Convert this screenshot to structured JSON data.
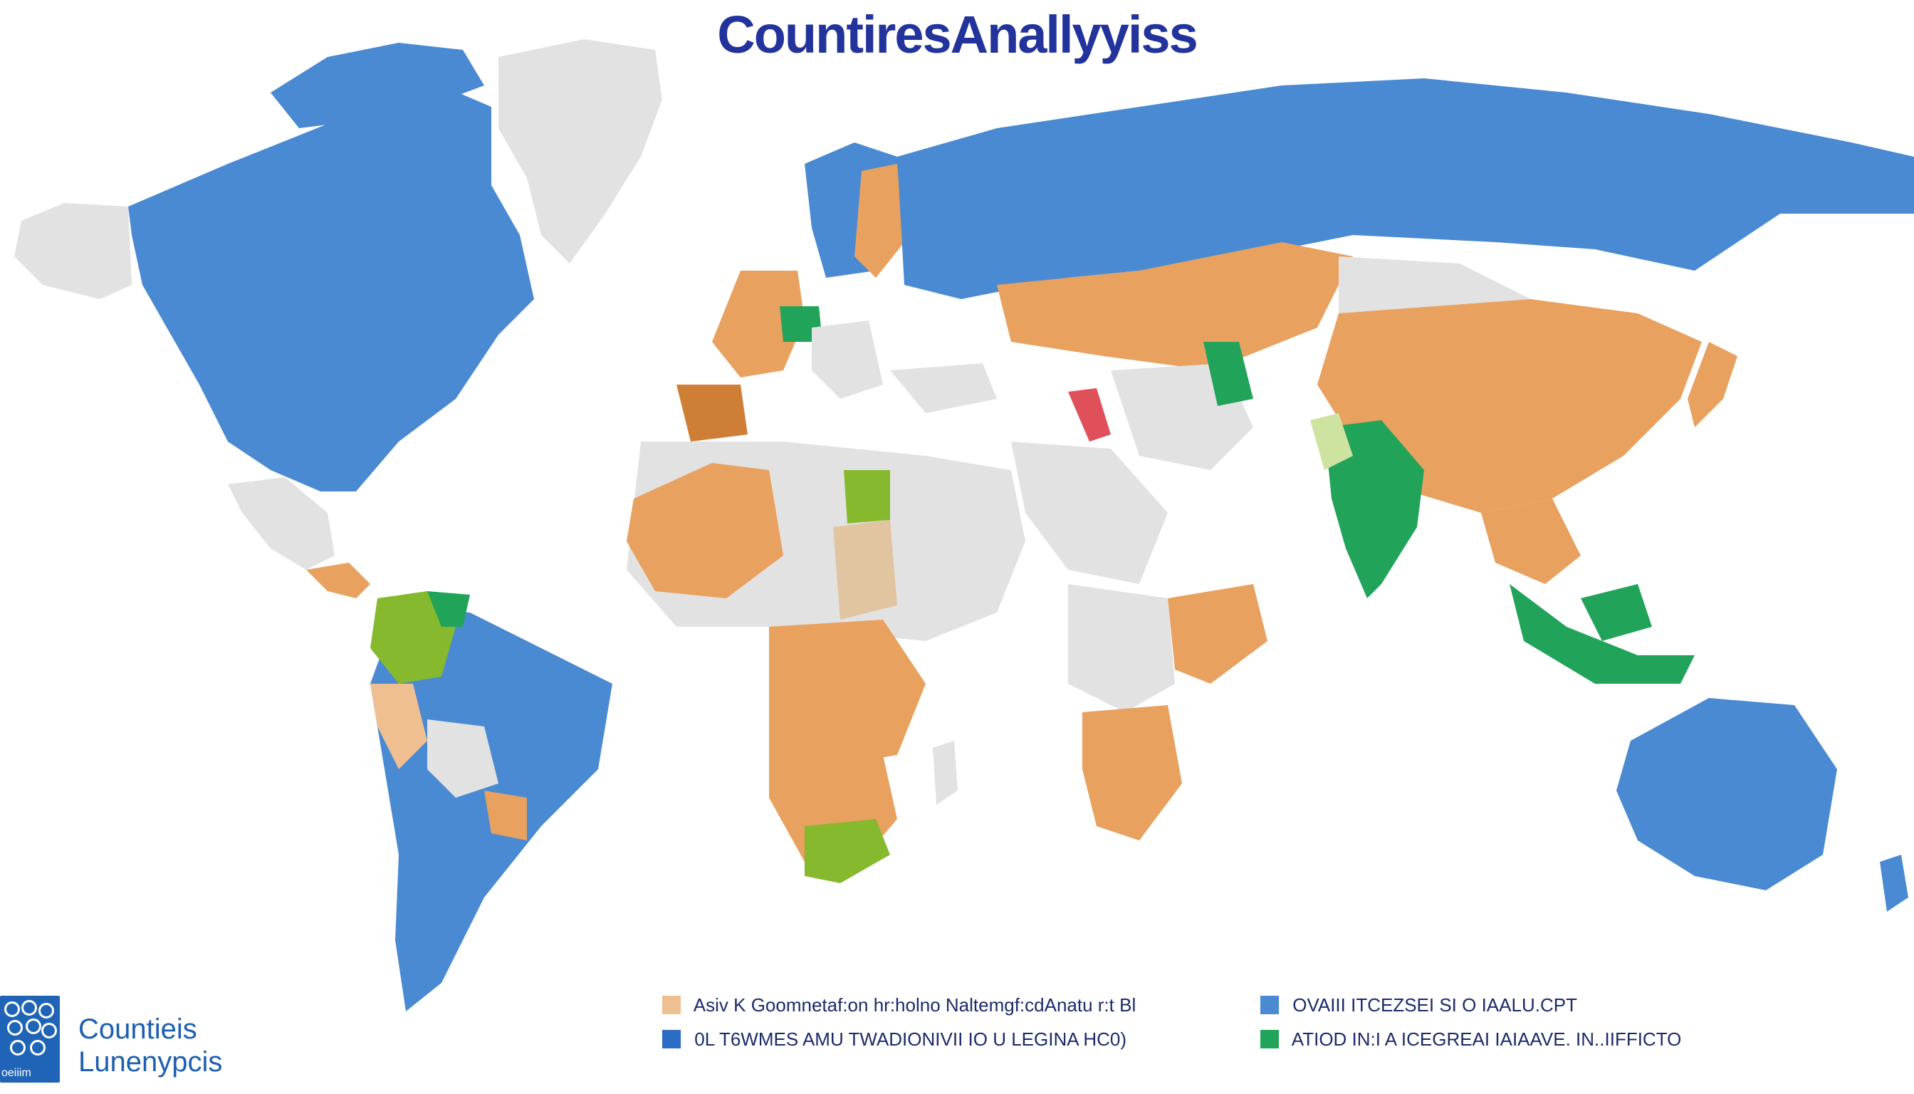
{
  "title": "CountiresAnallyyiss",
  "colors": {
    "ocean": "#ffffff",
    "blue": "#4a8ad2",
    "orange": "#e8a15f",
    "light_orange": "#efbf92",
    "tan": "#e0c5a0",
    "gray": "#e2e2e2",
    "green": "#21a35a",
    "lime": "#86b92e",
    "red": "#e0505a",
    "title": "#22339b"
  },
  "legend": [
    {
      "swatch": "#efbf92",
      "label": "Asiv K Goomnetaf:on hr:holno Naltemgf:cdAnatu r:t Bl"
    },
    {
      "swatch": "#2b6cc4",
      "label": "0L T6WMES AMU TWADIONIVII IO U LEGINA HC0)"
    },
    {
      "swatch": "#4a8ad2",
      "label": "OVAIII ITCEZSEI SI O IAALU.CPT"
    },
    {
      "swatch": "#21a35a",
      "label": "ATIOD IN:I A ICEGREAI IAIAAVE. IN..IIFFICTO"
    }
  ],
  "brand": {
    "name_line1": "Countieis",
    "name_line2": "Lunenypcis",
    "logo_caption": "oeiiim",
    "logo_icon": "globe-cluster-icon"
  }
}
